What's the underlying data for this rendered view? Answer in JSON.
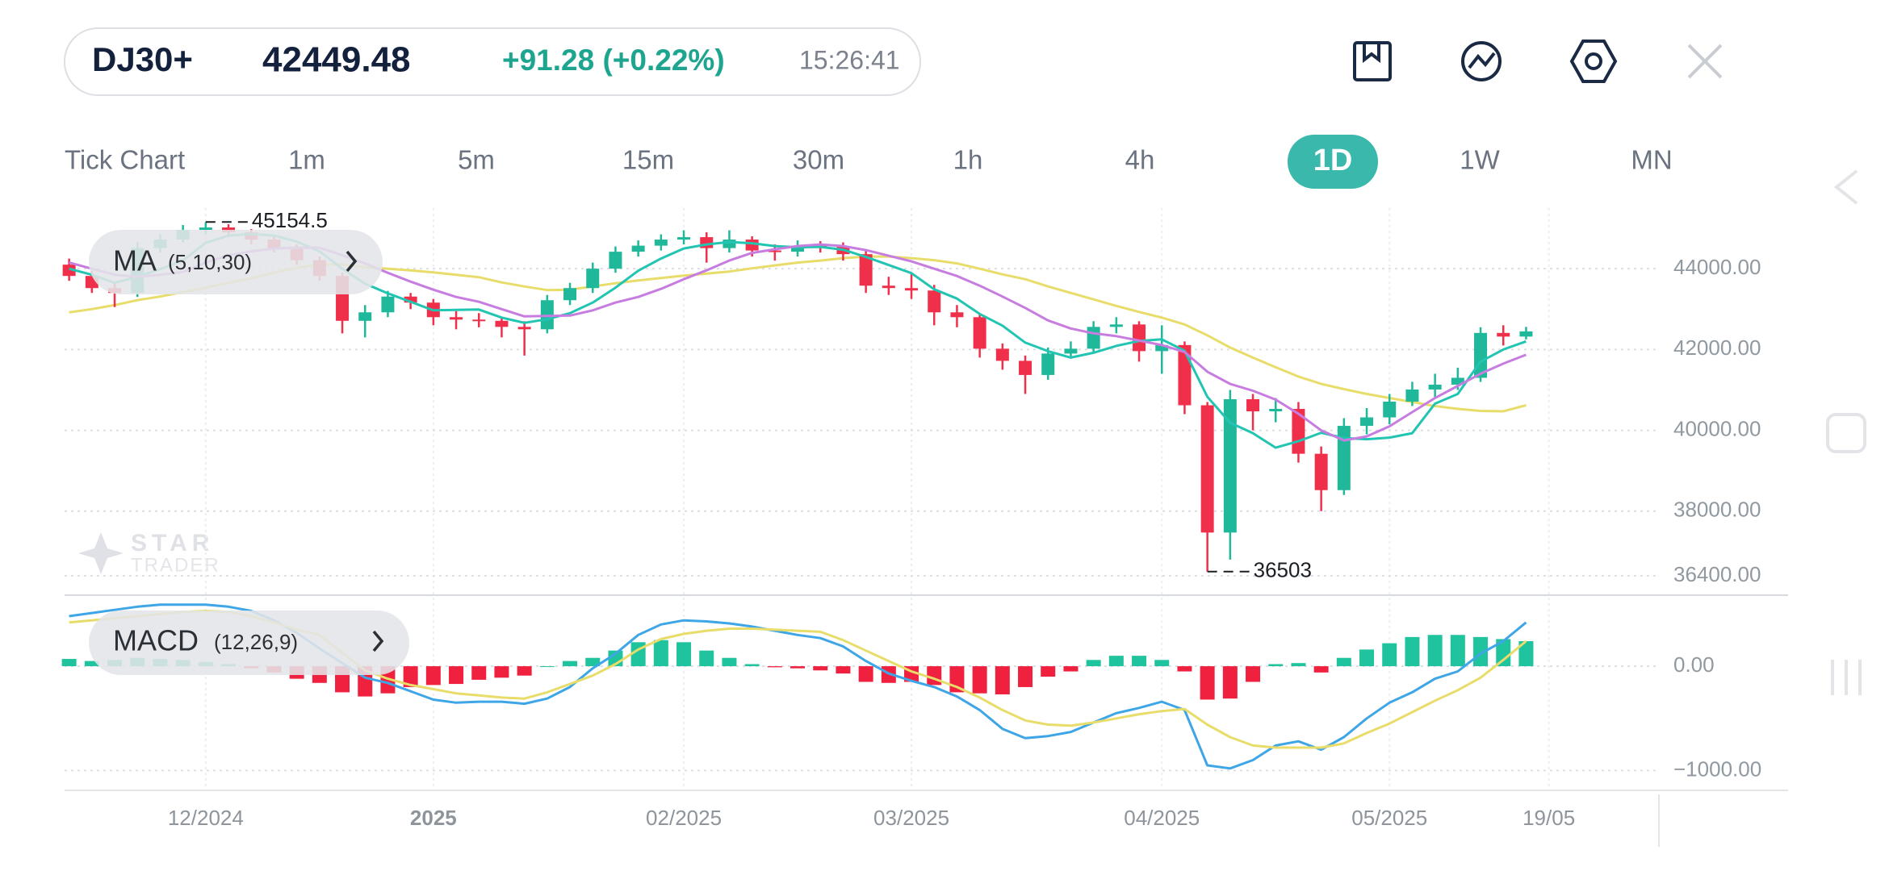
{
  "header": {
    "symbol": "DJ30+",
    "price": "42449.48",
    "change": "+91.28 (+0.22%)",
    "time": "15:26:41"
  },
  "timeframes": [
    "Tick Chart",
    "1m",
    "5m",
    "15m",
    "30m",
    "1h",
    "4h",
    "1D",
    "1W",
    "MN"
  ],
  "active_timeframe": 7,
  "watermark": {
    "line1": "STAR",
    "line2": "TRADER"
  },
  "chart_data": [
    {
      "type": "candlestick",
      "indicator": "MA",
      "params": "(5,10,30)",
      "categories": [
        null,
        null,
        null,
        null,
        null,
        null,
        "12/2024",
        null,
        null,
        null,
        null,
        null,
        null,
        null,
        null,
        null,
        "2025",
        null,
        null,
        null,
        null,
        null,
        null,
        null,
        null,
        null,
        null,
        "02/2025",
        null,
        null,
        null,
        null,
        null,
        null,
        null,
        null,
        null,
        "03/2025",
        null,
        null,
        null,
        null,
        null,
        null,
        null,
        null,
        null,
        null,
        "04/2025",
        null,
        null,
        null,
        null,
        null,
        null,
        null,
        null,
        null,
        "05/2025",
        null,
        null,
        null,
        null,
        null,
        null,
        "19/05"
      ],
      "bold_category": 16,
      "open": [
        44100,
        43820,
        43520,
        43400,
        44510,
        44720,
        44960,
        45020,
        44900,
        44720,
        44510,
        44210,
        43820,
        42710,
        42920,
        43310,
        43160,
        42800,
        42740,
        42710,
        42560,
        42500,
        43220,
        43520,
        44000,
        44420,
        44570,
        44720,
        44780,
        44510,
        44720,
        44450,
        44420,
        44570,
        44540,
        44360,
        43580,
        43520,
        43460,
        42920,
        42800,
        42020,
        41720,
        41370,
        41900,
        42020,
        42560,
        42620,
        41960,
        42110,
        40620,
        37470,
        40770,
        40470,
        40530,
        39420,
        38520,
        40110,
        40320,
        40710,
        41010,
        41130,
        41300,
        42410,
        42320,
        null
      ],
      "high": [
        44250,
        43950,
        43650,
        44650,
        44850,
        45080,
        45154.5,
        45100,
        44980,
        44800,
        44600,
        44300,
        43900,
        43100,
        43450,
        43400,
        43250,
        42950,
        42900,
        42800,
        42700,
        43350,
        43650,
        44150,
        44550,
        44700,
        44850,
        44950,
        44900,
        44950,
        44800,
        44600,
        44700,
        44680,
        44650,
        44450,
        43800,
        43900,
        43600,
        43100,
        42900,
        42150,
        41850,
        42050,
        42200,
        42700,
        42800,
        42700,
        42600,
        42200,
        40700,
        41000,
        40900,
        40800,
        40700,
        39600,
        40300,
        40550,
        40900,
        41200,
        41400,
        41550,
        42550,
        42600,
        42560,
        null
      ],
      "low": [
        43700,
        43400,
        43050,
        43300,
        44400,
        44650,
        44850,
        44780,
        44600,
        44400,
        44100,
        43700,
        42400,
        42300,
        42800,
        43000,
        42600,
        42500,
        42550,
        42300,
        41850,
        42400,
        43100,
        43400,
        43900,
        44300,
        44450,
        44600,
        44150,
        44400,
        44300,
        44200,
        44300,
        44400,
        44200,
        43400,
        43350,
        43250,
        42600,
        42550,
        41800,
        41500,
        40900,
        41250,
        41800,
        41900,
        42400,
        41700,
        41400,
        40400,
        36503,
        36800,
        40000,
        40200,
        39200,
        38000,
        38400,
        39900,
        40150,
        40600,
        40800,
        41000,
        41200,
        42100,
        42250,
        null
      ],
      "close": [
        43820,
        43520,
        43400,
        44510,
        44720,
        44960,
        45020,
        44900,
        44720,
        44510,
        44210,
        43820,
        42710,
        42920,
        43310,
        43160,
        42800,
        42740,
        42710,
        42560,
        42500,
        43220,
        43520,
        44000,
        44420,
        44570,
        44720,
        44780,
        44510,
        44720,
        44450,
        44420,
        44570,
        44540,
        44360,
        43580,
        43520,
        43460,
        42920,
        42800,
        42020,
        41720,
        41370,
        41900,
        42020,
        42560,
        42620,
        41960,
        42110,
        40620,
        37470,
        40770,
        40470,
        40530,
        39420,
        38520,
        40110,
        40320,
        40710,
        41010,
        41130,
        41300,
        42410,
        42320,
        42449,
        null
      ],
      "up_color": "#1fb89a",
      "down_color": "#f0304a",
      "series": [
        {
          "color": "#22c4b2",
          "values": [
            44000,
            43850,
            43650,
            43800,
            43990,
            44200,
            44640,
            44820,
            44860,
            44820,
            44670,
            44430,
            44000,
            43630,
            43390,
            43180,
            42970,
            42980,
            42990,
            42790,
            42660,
            42750,
            42900,
            43160,
            43530,
            43950,
            44250,
            44500,
            44600,
            44660,
            44630,
            44560,
            44530,
            44540,
            44470,
            44290,
            44090,
            43890,
            43490,
            43260,
            42880,
            42590,
            42170,
            41960,
            41800,
            41920,
            42090,
            42210,
            42250,
            41970,
            40830,
            40190,
            39930,
            39570,
            39730,
            39940,
            39810,
            39780,
            39820,
            39930,
            40660,
            40900,
            41700,
            42000,
            42200,
            null
          ]
        },
        {
          "color": "#c77de0",
          "values": [
            44150,
            44000,
            43850,
            43800,
            43850,
            43920,
            44150,
            44330,
            44430,
            44500,
            44520,
            44520,
            44330,
            44130,
            43900,
            43680,
            43480,
            43300,
            43180,
            43000,
            42820,
            42830,
            42840,
            42970,
            43160,
            43300,
            43500,
            43740,
            43960,
            44200,
            44390,
            44480,
            44560,
            44600,
            44560,
            44460,
            44320,
            44180,
            44000,
            43820,
            43580,
            43310,
            43030,
            42720,
            42520,
            42400,
            42330,
            42220,
            42110,
            41940,
            41450,
            41150,
            40980,
            40760,
            40410,
            40000,
            39750,
            39850,
            40100,
            40450,
            40800,
            41100,
            41400,
            41650,
            41870,
            null
          ]
        },
        {
          "color": "#e8dc6a",
          "values": [
            42920,
            43000,
            43100,
            43220,
            43310,
            43420,
            43530,
            43650,
            43760,
            43900,
            44020,
            44110,
            44100,
            44040,
            44000,
            43960,
            43910,
            43850,
            43790,
            43660,
            43560,
            43470,
            43480,
            43560,
            43640,
            43710,
            43770,
            43830,
            43880,
            43930,
            44010,
            44080,
            44150,
            44200,
            44260,
            44300,
            44300,
            44260,
            44210,
            44130,
            44000,
            43860,
            43740,
            43560,
            43400,
            43240,
            43080,
            42930,
            42790,
            42620,
            42350,
            42050,
            41800,
            41560,
            41330,
            41150,
            41020,
            40900,
            40800,
            40700,
            40600,
            40530,
            40480,
            40470,
            40620,
            null
          ]
        }
      ],
      "ylim": [
        35980,
        45500
      ],
      "yticks": [
        {
          "value": 44000,
          "label": "44000.00"
        },
        {
          "value": 42000,
          "label": "42000.00"
        },
        {
          "value": 40000,
          "label": "40000.00"
        },
        {
          "value": 38000,
          "label": "38000.00"
        },
        {
          "value": 36400,
          "label": "36400.00"
        }
      ],
      "grid": true
    },
    {
      "type": "macd",
      "indicator": "MACD",
      "params": "(12,26,9)",
      "histogram": {
        "up_color": "#1fc39d",
        "down_color": "#f0213f",
        "values": [
          70,
          50,
          60,
          80,
          70,
          60,
          40,
          20,
          -20,
          -60,
          -120,
          -160,
          -250,
          -290,
          -260,
          -200,
          -180,
          -170,
          -130,
          -110,
          -90,
          0,
          50,
          80,
          150,
          230,
          250,
          230,
          150,
          80,
          20,
          -10,
          -20,
          -40,
          -70,
          -150,
          -160,
          -150,
          -180,
          -250,
          -260,
          -270,
          -200,
          -100,
          -50,
          60,
          100,
          100,
          60,
          -50,
          -320,
          -310,
          -150,
          20,
          30,
          -60,
          80,
          160,
          220,
          280,
          300,
          300,
          280,
          260,
          240,
          null
        ]
      },
      "series": [
        {
          "color": "#3ea6e6",
          "values": [
            480,
            510,
            540,
            570,
            590,
            590,
            590,
            570,
            530,
            440,
            320,
            170,
            30,
            -110,
            -160,
            -240,
            -320,
            -350,
            -340,
            -340,
            -360,
            -310,
            -200,
            -20,
            120,
            300,
            400,
            440,
            430,
            410,
            380,
            340,
            300,
            270,
            190,
            50,
            -70,
            -140,
            -200,
            -290,
            -420,
            -600,
            -690,
            -670,
            -630,
            -540,
            -450,
            -400,
            -340,
            -420,
            -950,
            -980,
            -900,
            -760,
            -720,
            -800,
            -680,
            -500,
            -350,
            -250,
            -120,
            -50,
            120,
            240,
            420,
            null
          ]
        },
        {
          "color": "#e8dc6a",
          "values": [
            420,
            440,
            460,
            480,
            500,
            520,
            530,
            520,
            480,
            420,
            350,
            300,
            130,
            -40,
            -120,
            -180,
            -220,
            -260,
            -280,
            -300,
            -310,
            -250,
            -170,
            -90,
            20,
            160,
            260,
            310,
            340,
            360,
            360,
            350,
            340,
            330,
            250,
            150,
            50,
            -50,
            -120,
            -200,
            -300,
            -420,
            -520,
            -560,
            -570,
            -540,
            -500,
            -460,
            -430,
            -410,
            -560,
            -680,
            -760,
            -780,
            -780,
            -780,
            -740,
            -640,
            -550,
            -440,
            -330,
            -230,
            -110,
            60,
            240,
            null
          ]
        }
      ],
      "ylim": [
        -1190,
        650
      ],
      "yticks": [
        {
          "value": 0,
          "label": "0.00"
        },
        {
          "value": -1000,
          "label": "−1000.00"
        }
      ],
      "grid": true
    }
  ]
}
